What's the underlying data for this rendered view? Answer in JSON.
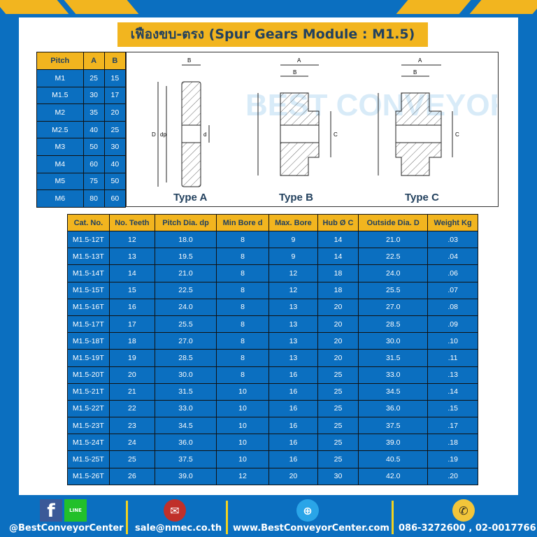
{
  "title": "เฟืองขบ-ตรง (Spur Gears Module : M1.5)",
  "pitch_table": {
    "headers": [
      "Pitch",
      "A",
      "B"
    ],
    "rows": [
      [
        "M1",
        "25",
        "15"
      ],
      [
        "M1.5",
        "30",
        "17"
      ],
      [
        "M2",
        "35",
        "20"
      ],
      [
        "M2.5",
        "40",
        "25"
      ],
      [
        "M3",
        "50",
        "30"
      ],
      [
        "M4",
        "60",
        "40"
      ],
      [
        "M5",
        "75",
        "50"
      ],
      [
        "M6",
        "80",
        "60"
      ]
    ]
  },
  "diagrams": {
    "labels": [
      "Type A",
      "Type B",
      "Type C"
    ],
    "dims": {
      "A": "A",
      "B": "B",
      "C": "C",
      "D": "D",
      "dp": "dp",
      "d": "d"
    },
    "watermark": "BEST CONVEYOR CENTER"
  },
  "spec_table": {
    "headers": [
      "Cat. No.",
      "No. Teeth",
      "Pitch Dia. dp",
      "Min Bore d",
      "Max. Bore",
      "Hub Ø C",
      "Outside Dia. D",
      "Weight Kg"
    ],
    "rows": [
      [
        "M1.5-12T",
        "12",
        "18.0",
        "8",
        "9",
        "14",
        "21.0",
        ".03"
      ],
      [
        "M1.5-13T",
        "13",
        "19.5",
        "8",
        "9",
        "14",
        "22.5",
        ".04"
      ],
      [
        "M1.5-14T",
        "14",
        "21.0",
        "8",
        "12",
        "18",
        "24.0",
        ".06"
      ],
      [
        "M1.5-15T",
        "15",
        "22.5",
        "8",
        "12",
        "18",
        "25.5",
        ".07"
      ],
      [
        "M1.5-16T",
        "16",
        "24.0",
        "8",
        "13",
        "20",
        "27.0",
        ".08"
      ],
      [
        "M1.5-17T",
        "17",
        "25.5",
        "8",
        "13",
        "20",
        "28.5",
        ".09"
      ],
      [
        "M1.5-18T",
        "18",
        "27.0",
        "8",
        "13",
        "20",
        "30.0",
        ".10"
      ],
      [
        "M1.5-19T",
        "19",
        "28.5",
        "8",
        "13",
        "20",
        "31.5",
        ".11"
      ],
      [
        "M1.5-20T",
        "20",
        "30.0",
        "8",
        "16",
        "25",
        "33.0",
        ".13"
      ],
      [
        "M1.5-21T",
        "21",
        "31.5",
        "10",
        "16",
        "25",
        "34.5",
        ".14"
      ],
      [
        "M1.5-22T",
        "22",
        "33.0",
        "10",
        "16",
        "25",
        "36.0",
        ".15"
      ],
      [
        "M1.5-23T",
        "23",
        "34.5",
        "10",
        "16",
        "25",
        "37.5",
        ".17"
      ],
      [
        "M1.5-24T",
        "24",
        "36.0",
        "10",
        "16",
        "25",
        "39.0",
        ".18"
      ],
      [
        "M1.5-25T",
        "25",
        "37.5",
        "10",
        "16",
        "25",
        "40.5",
        ".19"
      ],
      [
        "M1.5-26T",
        "26",
        "39.0",
        "12",
        "20",
        "30",
        "42.0",
        ".20"
      ]
    ]
  },
  "footer": {
    "facebook": "@BestConveyorCenter",
    "line_badge": "LINE",
    "email": "sale@nmec.co.th",
    "website": "www.BestConveyorCenter.com",
    "phone": "086-3272600 , 02-0017766"
  },
  "colors": {
    "blue": "#0b6fc0",
    "yellow": "#f2b51f",
    "title_text": "#23415e"
  }
}
